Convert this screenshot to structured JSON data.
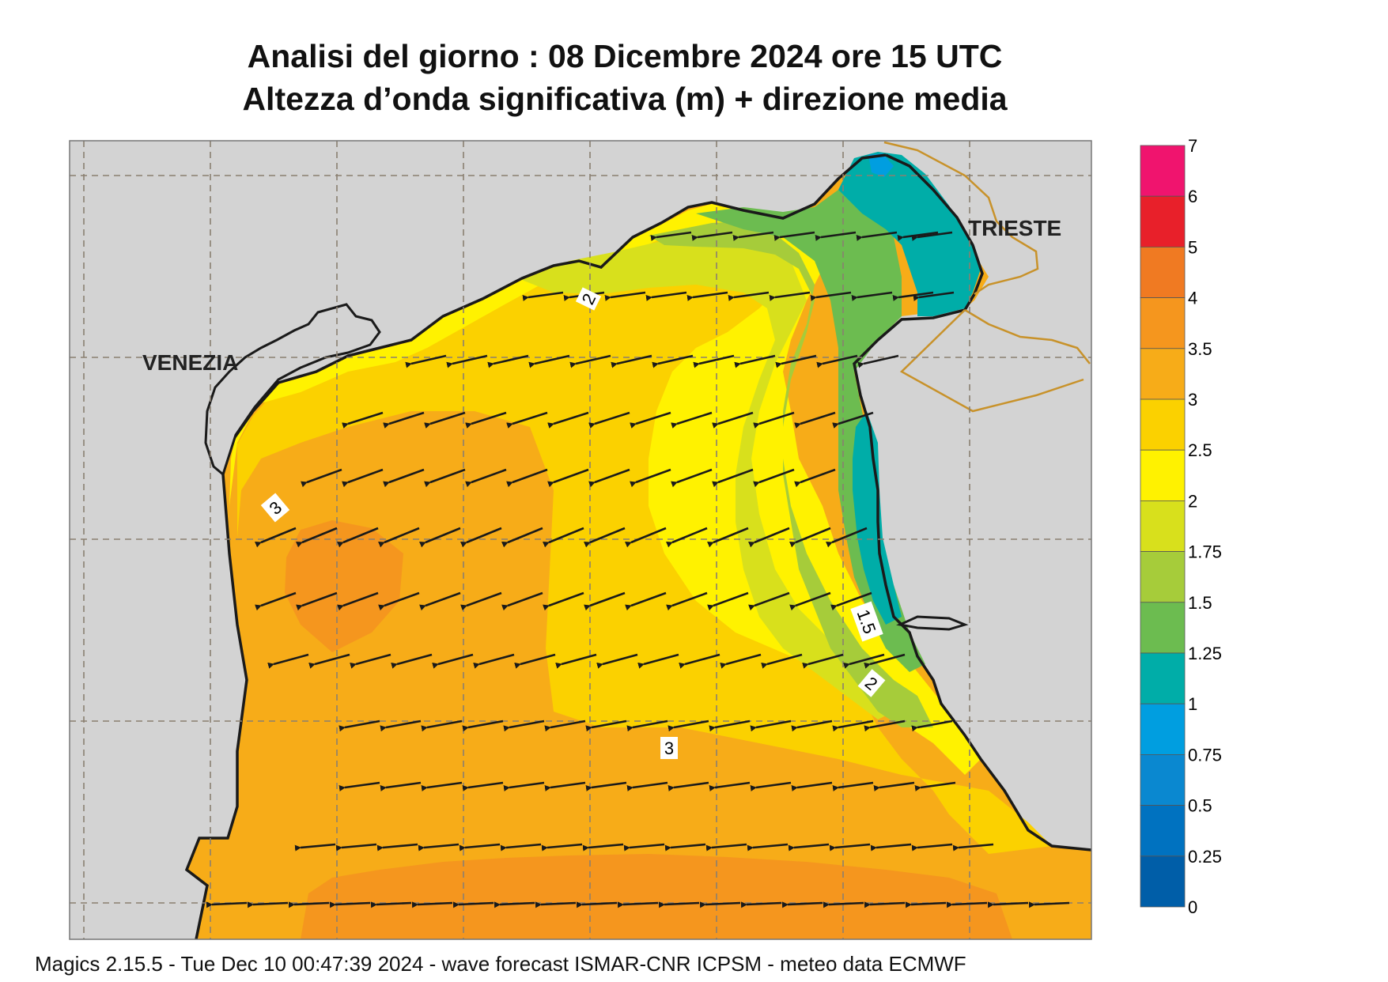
{
  "header": {
    "title_line1": "Analisi del giorno :  08 Dicembre  2024   ore 15 UTC",
    "title_line2": "Altezza d’onda significativa (m) + direzione media"
  },
  "map": {
    "cities": [
      "VENEZIA",
      "TRIESTE"
    ],
    "contour_labels": [
      "2",
      "3",
      "3",
      "1.5",
      "2"
    ],
    "vector_direction": "towards west-southwest",
    "colors": {
      "land": "#d3d3d3",
      "coast": "#1a1a1a",
      "border": "#c8922a",
      "grid": "#8a7f70"
    }
  },
  "colorbar": {
    "labels": [
      "7",
      "6",
      "5",
      "4",
      "3.5",
      "3",
      "2.5",
      "2",
      "1.75",
      "1.5",
      "1.25",
      "1",
      "0.75",
      "0.5",
      "0.25",
      "0"
    ],
    "colors": [
      "#f0146e",
      "#e8202a",
      "#f07a22",
      "#f5961e",
      "#f7ac18",
      "#fbd100",
      "#fff200",
      "#d8e01c",
      "#a6cc3a",
      "#6cbc50",
      "#00ada8",
      "#009ee0",
      "#0a88d0",
      "#0072c0",
      "#005ea8"
    ]
  },
  "footer": {
    "text": "Magics 2.15.5 - Tue Dec 10 00:47:39 2024 - wave forecast  ISMAR-CNR  ICPSM - meteo data    ECMWF"
  }
}
